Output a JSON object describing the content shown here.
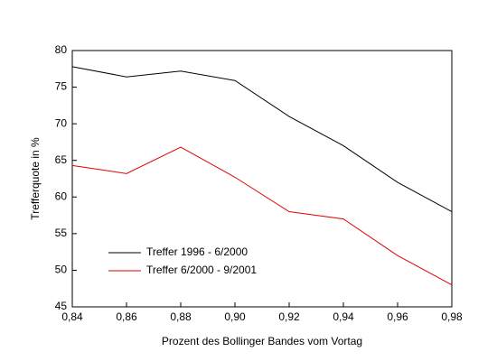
{
  "chart_data": {
    "type": "line",
    "x_label": "Prozent des Bollinger Bandes vom Vortag",
    "y_label": "Trefferquote in %",
    "x": [
      0.84,
      0.86,
      0.88,
      0.9,
      0.92,
      0.94,
      0.96,
      0.98
    ],
    "series": [
      {
        "name": "Treffer 1996 - 6/2000",
        "color": "#000000",
        "values": [
          77.8,
          76.4,
          77.2,
          75.9,
          71,
          67,
          62,
          58
        ]
      },
      {
        "name": "Treffer 6/2000 - 9/2001",
        "color": "#e00000",
        "values": [
          64.3,
          63.2,
          66.8,
          62.7,
          58,
          57,
          52,
          48
        ]
      }
    ],
    "xlim": [
      0.84,
      0.98
    ],
    "xticks": [
      {
        "value": 0.84,
        "label": "0,84"
      },
      {
        "value": 0.86,
        "label": "0,86"
      },
      {
        "value": 0.88,
        "label": "0,88"
      },
      {
        "value": 0.9,
        "label": "0,90"
      },
      {
        "value": 0.92,
        "label": "0,92"
      },
      {
        "value": 0.94,
        "label": "0,94"
      },
      {
        "value": 0.96,
        "label": "0,96"
      },
      {
        "value": 0.98,
        "label": "0,98"
      }
    ],
    "ylim": [
      45,
      80
    ],
    "yticks": [
      45,
      50,
      55,
      60,
      65,
      70,
      75,
      80
    ],
    "legend": "lower left"
  }
}
